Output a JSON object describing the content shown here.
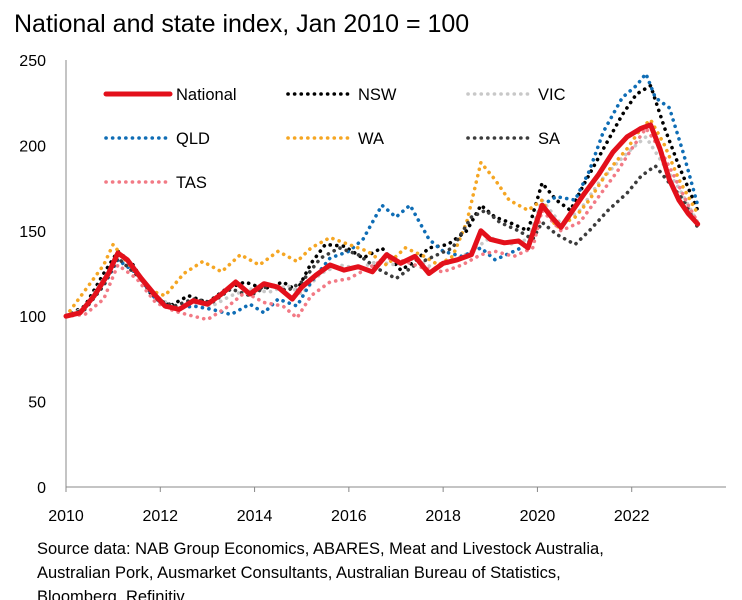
{
  "chart_data": {
    "type": "line",
    "title": "National and state index, Jan 2010 = 100",
    "xlabel": "",
    "ylabel": "",
    "xlim": [
      2010,
      2024
    ],
    "ylim": [
      0,
      250
    ],
    "x_ticks": [
      "2010",
      "2012",
      "2014",
      "2016",
      "2018",
      "2020",
      "2022"
    ],
    "y_ticks": [
      "0",
      "50",
      "100",
      "150",
      "200",
      "250"
    ],
    "grid": false,
    "legend_position": "top, inside plot, 3 columns",
    "series": [
      {
        "name": "National",
        "color": "#e3101b",
        "style": "solid-thick",
        "points": [
          [
            2010.0,
            100
          ],
          [
            2010.3,
            102
          ],
          [
            2010.6,
            112
          ],
          [
            2010.9,
            125
          ],
          [
            2011.1,
            137
          ],
          [
            2011.3,
            133
          ],
          [
            2011.6,
            122
          ],
          [
            2011.9,
            112
          ],
          [
            2012.1,
            106
          ],
          [
            2012.4,
            104
          ],
          [
            2012.7,
            109
          ],
          [
            2013.0,
            107
          ],
          [
            2013.3,
            113
          ],
          [
            2013.6,
            120
          ],
          [
            2013.9,
            113
          ],
          [
            2014.2,
            119
          ],
          [
            2014.5,
            117
          ],
          [
            2014.8,
            110
          ],
          [
            2015.0,
            117
          ],
          [
            2015.3,
            124
          ],
          [
            2015.6,
            130
          ],
          [
            2015.9,
            127
          ],
          [
            2016.2,
            129
          ],
          [
            2016.5,
            126
          ],
          [
            2016.8,
            136
          ],
          [
            2017.1,
            131
          ],
          [
            2017.4,
            135
          ],
          [
            2017.7,
            125
          ],
          [
            2018.0,
            131
          ],
          [
            2018.3,
            133
          ],
          [
            2018.6,
            136
          ],
          [
            2018.8,
            150
          ],
          [
            2019.0,
            145
          ],
          [
            2019.3,
            143
          ],
          [
            2019.6,
            144
          ],
          [
            2019.8,
            140
          ],
          [
            2020.1,
            165
          ],
          [
            2020.3,
            158
          ],
          [
            2020.5,
            152
          ],
          [
            2020.7,
            160
          ],
          [
            2021.0,
            172
          ],
          [
            2021.3,
            183
          ],
          [
            2021.6,
            196
          ],
          [
            2021.9,
            205
          ],
          [
            2022.2,
            210
          ],
          [
            2022.4,
            212
          ],
          [
            2022.6,
            198
          ],
          [
            2022.8,
            180
          ],
          [
            2023.0,
            168
          ],
          [
            2023.2,
            160
          ],
          [
            2023.4,
            154
          ]
        ]
      },
      {
        "name": "NSW",
        "color": "#000000",
        "style": "dotted",
        "points": [
          [
            2010.0,
            100
          ],
          [
            2010.4,
            106
          ],
          [
            2010.8,
            125
          ],
          [
            2011.1,
            138
          ],
          [
            2011.4,
            131
          ],
          [
            2011.8,
            113
          ],
          [
            2012.2,
            106
          ],
          [
            2012.6,
            112
          ],
          [
            2013.0,
            108
          ],
          [
            2013.4,
            116
          ],
          [
            2013.8,
            120
          ],
          [
            2014.2,
            116
          ],
          [
            2014.6,
            120
          ],
          [
            2014.9,
            115
          ],
          [
            2015.2,
            131
          ],
          [
            2015.5,
            142
          ],
          [
            2015.9,
            141
          ],
          [
            2016.3,
            134
          ],
          [
            2016.7,
            140
          ],
          [
            2017.1,
            127
          ],
          [
            2017.4,
            132
          ],
          [
            2017.7,
            140
          ],
          [
            2018.1,
            142
          ],
          [
            2018.5,
            150
          ],
          [
            2018.8,
            165
          ],
          [
            2019.1,
            158
          ],
          [
            2019.4,
            155
          ],
          [
            2019.8,
            150
          ],
          [
            2020.1,
            178
          ],
          [
            2020.4,
            168
          ],
          [
            2020.7,
            162
          ],
          [
            2021.0,
            178
          ],
          [
            2021.4,
            198
          ],
          [
            2021.8,
            218
          ],
          [
            2022.1,
            230
          ],
          [
            2022.4,
            235
          ],
          [
            2022.7,
            210
          ],
          [
            2023.0,
            188
          ],
          [
            2023.4,
            162
          ]
        ]
      },
      {
        "name": "VIC",
        "color": "#c8c8c8",
        "style": "dotted",
        "points": [
          [
            2010.0,
            100
          ],
          [
            2010.4,
            105
          ],
          [
            2010.8,
            122
          ],
          [
            2011.1,
            134
          ],
          [
            2011.5,
            125
          ],
          [
            2011.9,
            112
          ],
          [
            2012.3,
            105
          ],
          [
            2012.7,
            108
          ],
          [
            2013.1,
            106
          ],
          [
            2013.5,
            112
          ],
          [
            2013.9,
            116
          ],
          [
            2014.3,
            114
          ],
          [
            2014.7,
            118
          ],
          [
            2015.0,
            113
          ],
          [
            2015.4,
            125
          ],
          [
            2015.8,
            130
          ],
          [
            2016.2,
            128
          ],
          [
            2016.6,
            132
          ],
          [
            2017.0,
            130
          ],
          [
            2017.4,
            134
          ],
          [
            2017.8,
            128
          ],
          [
            2018.2,
            132
          ],
          [
            2018.6,
            138
          ],
          [
            2019.0,
            146
          ],
          [
            2019.4,
            142
          ],
          [
            2019.8,
            145
          ],
          [
            2020.1,
            168
          ],
          [
            2020.5,
            154
          ],
          [
            2020.9,
            162
          ],
          [
            2021.3,
            178
          ],
          [
            2021.7,
            190
          ],
          [
            2022.0,
            198
          ],
          [
            2022.3,
            205
          ],
          [
            2022.6,
            192
          ],
          [
            2023.0,
            175
          ],
          [
            2023.4,
            155
          ]
        ]
      },
      {
        "name": "QLD",
        "color": "#0f6db5",
        "style": "dotted",
        "points": [
          [
            2010.0,
            100
          ],
          [
            2010.4,
            104
          ],
          [
            2010.8,
            118
          ],
          [
            2011.1,
            133
          ],
          [
            2011.5,
            125
          ],
          [
            2011.9,
            110
          ],
          [
            2012.3,
            104
          ],
          [
            2012.7,
            106
          ],
          [
            2013.1,
            104
          ],
          [
            2013.5,
            101
          ],
          [
            2013.9,
            107
          ],
          [
            2014.2,
            102
          ],
          [
            2014.5,
            110
          ],
          [
            2014.9,
            106
          ],
          [
            2015.2,
            120
          ],
          [
            2015.6,
            134
          ],
          [
            2016.0,
            138
          ],
          [
            2016.3,
            145
          ],
          [
            2016.7,
            165
          ],
          [
            2017.0,
            158
          ],
          [
            2017.3,
            165
          ],
          [
            2017.7,
            145
          ],
          [
            2018.0,
            138
          ],
          [
            2018.4,
            135
          ],
          [
            2018.8,
            140
          ],
          [
            2019.1,
            133
          ],
          [
            2019.5,
            138
          ],
          [
            2019.8,
            142
          ],
          [
            2020.1,
            165
          ],
          [
            2020.4,
            170
          ],
          [
            2020.8,
            168
          ],
          [
            2021.1,
            185
          ],
          [
            2021.4,
            208
          ],
          [
            2021.8,
            228
          ],
          [
            2022.1,
            235
          ],
          [
            2022.3,
            242
          ],
          [
            2022.5,
            228
          ],
          [
            2022.8,
            222
          ],
          [
            2023.1,
            195
          ],
          [
            2023.4,
            165
          ]
        ]
      },
      {
        "name": "WA",
        "color": "#f5a623",
        "style": "dotted",
        "points": [
          [
            2010.0,
            100
          ],
          [
            2010.4,
            115
          ],
          [
            2010.8,
            130
          ],
          [
            2011.0,
            142
          ],
          [
            2011.4,
            128
          ],
          [
            2011.8,
            115
          ],
          [
            2012.1,
            112
          ],
          [
            2012.5,
            125
          ],
          [
            2012.9,
            132
          ],
          [
            2013.3,
            126
          ],
          [
            2013.7,
            136
          ],
          [
            2014.1,
            130
          ],
          [
            2014.5,
            138
          ],
          [
            2014.9,
            132
          ],
          [
            2015.2,
            140
          ],
          [
            2015.6,
            146
          ],
          [
            2016.0,
            142
          ],
          [
            2016.4,
            138
          ],
          [
            2016.8,
            130
          ],
          [
            2017.2,
            140
          ],
          [
            2017.6,
            135
          ],
          [
            2017.9,
            130
          ],
          [
            2018.2,
            135
          ],
          [
            2018.5,
            155
          ],
          [
            2018.8,
            190
          ],
          [
            2019.1,
            180
          ],
          [
            2019.4,
            168
          ],
          [
            2019.8,
            162
          ],
          [
            2020.1,
            168
          ],
          [
            2020.4,
            152
          ],
          [
            2020.8,
            158
          ],
          [
            2021.1,
            168
          ],
          [
            2021.5,
            185
          ],
          [
            2021.9,
            198
          ],
          [
            2022.2,
            210
          ],
          [
            2022.4,
            215
          ],
          [
            2022.7,
            200
          ],
          [
            2023.0,
            180
          ],
          [
            2023.4,
            160
          ]
        ]
      },
      {
        "name": "SA",
        "color": "#3c3c3c",
        "style": "dotted",
        "points": [
          [
            2010.0,
            100
          ],
          [
            2010.4,
            104
          ],
          [
            2010.8,
            118
          ],
          [
            2011.1,
            134
          ],
          [
            2011.5,
            124
          ],
          [
            2011.9,
            110
          ],
          [
            2012.3,
            106
          ],
          [
            2012.7,
            110
          ],
          [
            2013.1,
            108
          ],
          [
            2013.5,
            116
          ],
          [
            2013.9,
            112
          ],
          [
            2014.3,
            118
          ],
          [
            2014.7,
            115
          ],
          [
            2015.0,
            120
          ],
          [
            2015.4,
            134
          ],
          [
            2015.8,
            140
          ],
          [
            2016.2,
            136
          ],
          [
            2016.6,
            128
          ],
          [
            2017.0,
            122
          ],
          [
            2017.4,
            130
          ],
          [
            2017.8,
            135
          ],
          [
            2018.2,
            140
          ],
          [
            2018.6,
            158
          ],
          [
            2018.9,
            162
          ],
          [
            2019.2,
            155
          ],
          [
            2019.6,
            150
          ],
          [
            2019.9,
            145
          ],
          [
            2020.1,
            155
          ],
          [
            2020.4,
            148
          ],
          [
            2020.8,
            142
          ],
          [
            2021.1,
            150
          ],
          [
            2021.5,
            162
          ],
          [
            2021.9,
            172
          ],
          [
            2022.2,
            182
          ],
          [
            2022.5,
            188
          ],
          [
            2022.8,
            178
          ],
          [
            2023.1,
            168
          ],
          [
            2023.4,
            152
          ]
        ]
      },
      {
        "name": "TAS",
        "color": "#f27a85",
        "style": "dotted",
        "points": [
          [
            2010.0,
            100
          ],
          [
            2010.4,
            101
          ],
          [
            2010.8,
            110
          ],
          [
            2011.1,
            130
          ],
          [
            2011.5,
            122
          ],
          [
            2011.9,
            108
          ],
          [
            2012.3,
            103
          ],
          [
            2012.7,
            100
          ],
          [
            2013.0,
            98
          ],
          [
            2013.4,
            105
          ],
          [
            2013.8,
            114
          ],
          [
            2014.2,
            108
          ],
          [
            2014.6,
            106
          ],
          [
            2014.9,
            99
          ],
          [
            2015.2,
            112
          ],
          [
            2015.6,
            120
          ],
          [
            2016.0,
            122
          ],
          [
            2016.4,
            128
          ],
          [
            2016.8,
            134
          ],
          [
            2017.2,
            132
          ],
          [
            2017.6,
            128
          ],
          [
            2018.0,
            126
          ],
          [
            2018.4,
            130
          ],
          [
            2018.8,
            136
          ],
          [
            2019.1,
            138
          ],
          [
            2019.5,
            135
          ],
          [
            2019.9,
            140
          ],
          [
            2020.1,
            162
          ],
          [
            2020.5,
            150
          ],
          [
            2020.9,
            155
          ],
          [
            2021.3,
            170
          ],
          [
            2021.7,
            185
          ],
          [
            2022.0,
            198
          ],
          [
            2022.3,
            210
          ],
          [
            2022.6,
            198
          ],
          [
            2022.9,
            182
          ],
          [
            2023.2,
            165
          ],
          [
            2023.4,
            155
          ]
        ]
      }
    ]
  },
  "source": {
    "line1": "Source data: NAB Group Economics, ABARES, Meat and Livestock Australia,",
    "line2": "Australian Pork, Ausmarket Consultants, Australian Bureau of Statistics,",
    "line3": "Bloomberg, Refinitiv"
  }
}
